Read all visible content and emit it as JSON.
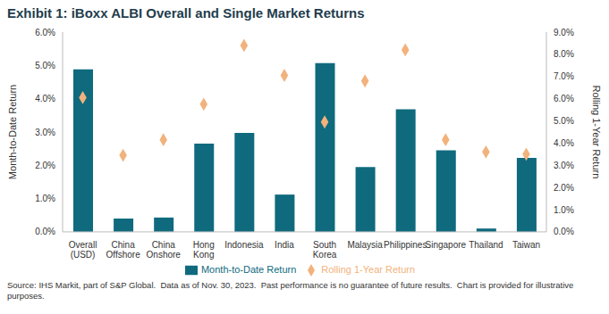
{
  "chart_data": {
    "type": "bar",
    "title": "Exhibit 1: iBoxx ALBI Overall and Single Market Returns",
    "note": "Source: IHS Markit, part of S&P Global.  Data as of Nov. 30, 2023.  Past performance is no guarantee of future results.  Chart is provided for illustrative purposes.",
    "categories": [
      "Overall (USD)",
      "China Offshore",
      "China Onshore",
      "Hong Kong",
      "Indonesia",
      "India",
      "South Korea",
      "Malaysia",
      "Philippines",
      "Singapore",
      "Thailand",
      "Taiwan"
    ],
    "series": [
      {
        "name": "Month-to-Date Return",
        "type": "bar",
        "color": "#0f6a7e",
        "values": [
          4.88,
          0.4,
          0.43,
          2.65,
          2.97,
          1.12,
          5.07,
          1.95,
          3.68,
          2.45,
          0.1,
          2.22
        ]
      },
      {
        "name": "Rolling 1-Year Return",
        "type": "scatter",
        "marker": "diamond",
        "color": "#f2b27c",
        "axis": "y2",
        "values": [
          6.05,
          3.45,
          4.15,
          5.75,
          8.4,
          7.05,
          4.95,
          6.8,
          8.2,
          4.15,
          3.6,
          3.5
        ]
      }
    ],
    "y_label": "Month-to-Date Return",
    "y2_label": "Rolling 1-Year Return",
    "ylim": [
      0,
      6
    ],
    "yticks": [
      {
        "value": 0,
        "label": "0.0%"
      },
      {
        "value": 1,
        "label": "1.0%"
      },
      {
        "value": 2,
        "label": "2.0%"
      },
      {
        "value": 3,
        "label": "3.0%"
      },
      {
        "value": 4,
        "label": "4.0%"
      },
      {
        "value": 5,
        "label": "5.0%"
      },
      {
        "value": 6,
        "label": "6.0%"
      }
    ],
    "y2lim": [
      0,
      9
    ],
    "y2ticks": [
      {
        "value": 0,
        "label": "0.0%"
      },
      {
        "value": 1,
        "label": "1.0%"
      },
      {
        "value": 2,
        "label": "2.0%"
      },
      {
        "value": 3,
        "label": "3.0%"
      },
      {
        "value": 4,
        "label": "4.0%"
      },
      {
        "value": 5,
        "label": "5.0%"
      },
      {
        "value": 6,
        "label": "6.0%"
      },
      {
        "value": 7,
        "label": "7.0%"
      },
      {
        "value": 8,
        "label": "8.0%"
      },
      {
        "value": 9,
        "label": "9.0%"
      }
    ],
    "grid": false,
    "legend": "bottom"
  }
}
